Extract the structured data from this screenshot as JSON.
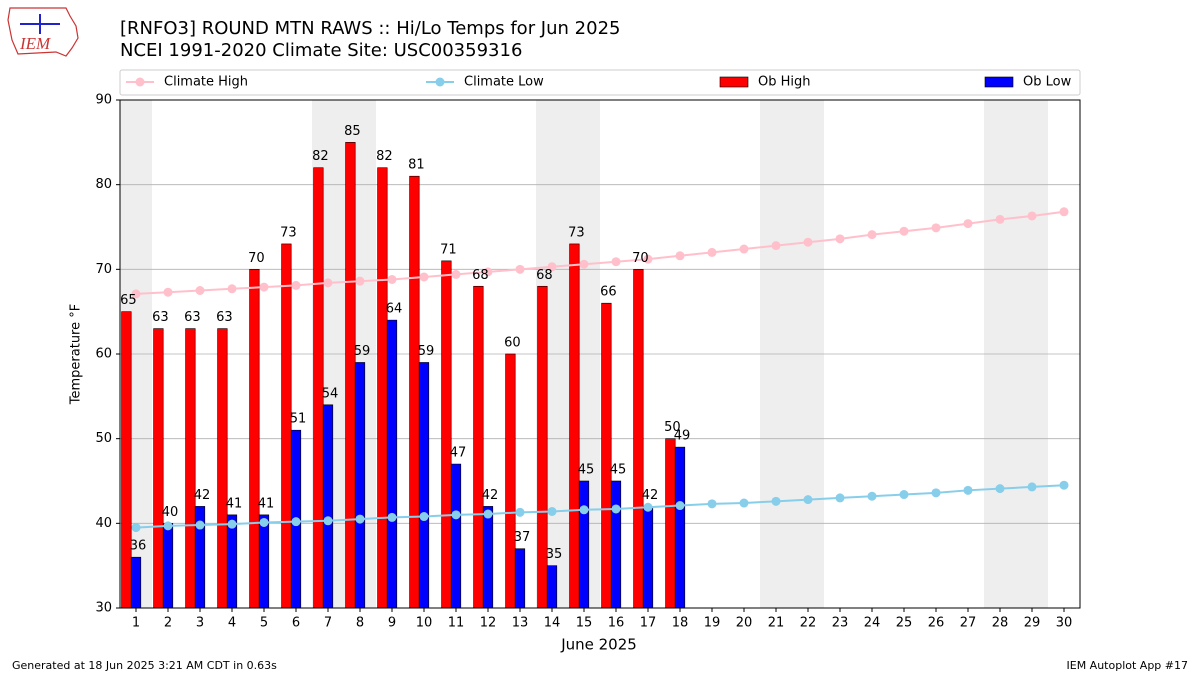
{
  "chart_data": {
    "type": "bar",
    "title": "[RNFO3] ROUND MTN RAWS :: Hi/Lo Temps for Jun 2025",
    "subtitle": "NCEI 1991-2020 Climate Site: USC00359316",
    "x_label": "June 2025",
    "y_label": "Temperature °F",
    "x": [
      1,
      2,
      3,
      4,
      5,
      6,
      7,
      8,
      9,
      10,
      11,
      12,
      13,
      14,
      15,
      16,
      17,
      18,
      19,
      20,
      21,
      22,
      23,
      24,
      25,
      26,
      27,
      28,
      29,
      30
    ],
    "xlim": [
      0.5,
      30.5
    ],
    "xticks": [
      1,
      2,
      3,
      4,
      5,
      6,
      7,
      8,
      9,
      10,
      11,
      12,
      13,
      14,
      15,
      16,
      17,
      18,
      19,
      20,
      21,
      22,
      23,
      24,
      25,
      26,
      27,
      28,
      29,
      30
    ],
    "ylim": [
      30,
      90
    ],
    "yticks": [
      30,
      40,
      50,
      60,
      70,
      80,
      90
    ],
    "grid": true,
    "legend": "top",
    "series": [
      {
        "name": "Climate High",
        "type": "line",
        "color": "#ffc0cb",
        "values": [
          67.1,
          67.3,
          67.5,
          67.7,
          67.9,
          68.1,
          68.4,
          68.6,
          68.8,
          69.1,
          69.4,
          69.7,
          70.0,
          70.3,
          70.6,
          70.9,
          71.2,
          71.6,
          72.0,
          72.4,
          72.8,
          73.2,
          73.6,
          74.1,
          74.5,
          74.9,
          75.4,
          75.9,
          76.3,
          76.8
        ]
      },
      {
        "name": "Climate Low",
        "type": "line",
        "color": "#87ceeb",
        "values": [
          39.5,
          39.7,
          39.8,
          39.9,
          40.1,
          40.2,
          40.3,
          40.5,
          40.7,
          40.8,
          41.0,
          41.1,
          41.3,
          41.4,
          41.6,
          41.7,
          41.9,
          42.1,
          42.3,
          42.4,
          42.6,
          42.8,
          43.0,
          43.2,
          43.4,
          43.6,
          43.9,
          44.1,
          44.3,
          44.5
        ]
      },
      {
        "name": "Ob High",
        "type": "bar",
        "color": "#ff0000",
        "values": [
          65,
          63,
          63,
          63,
          70,
          73,
          82,
          85,
          82,
          81,
          71,
          68,
          60,
          68,
          73,
          66,
          70,
          50,
          null,
          null,
          null,
          null,
          null,
          null,
          null,
          null,
          null,
          null,
          null,
          null
        ]
      },
      {
        "name": "Ob Low",
        "type": "bar",
        "color": "#0000ff",
        "values": [
          36,
          40,
          42,
          41,
          41,
          51,
          54,
          59,
          64,
          59,
          47,
          42,
          37,
          35,
          45,
          45,
          42,
          49,
          null,
          null,
          null,
          null,
          null,
          null,
          null,
          null,
          null,
          null,
          null,
          null
        ]
      }
    ]
  },
  "logo": "IEM",
  "footer_left": "Generated at 18 Jun 2025 3:21 AM CDT in 0.63s",
  "footer_right": "IEM Autoplot App #17"
}
